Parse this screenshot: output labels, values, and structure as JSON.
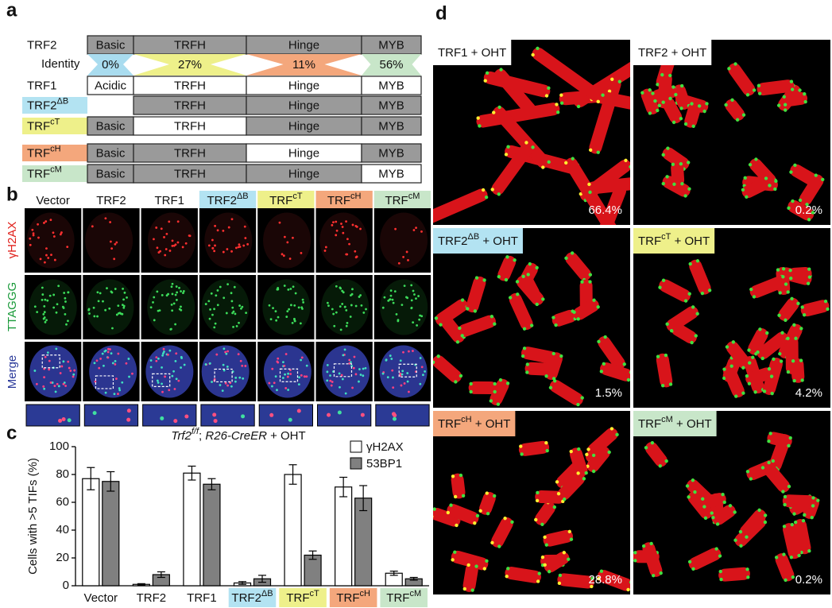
{
  "panel_a": {
    "letter": "a",
    "rows": [
      {
        "label": "TRF2",
        "label_color": null,
        "domains": [
          "Basic",
          "TRFH",
          "Hinge",
          "MYB"
        ],
        "shaded": [
          true,
          true,
          true,
          true
        ]
      },
      {
        "label": "TRF1",
        "label_color": null,
        "domains": [
          "Acidic",
          "TRFH",
          "Hinge",
          "MYB"
        ],
        "shaded": [
          false,
          false,
          false,
          false
        ]
      },
      {
        "label": {
          "base": "TRF2",
          "sup": "ΔB"
        },
        "label_color": "#b3e3f2",
        "domains": [
          null,
          "TRFH",
          "Hinge",
          "MYB"
        ],
        "shaded": [
          false,
          true,
          true,
          true
        ]
      },
      {
        "label": {
          "base": "TRF",
          "sup": "cT"
        },
        "label_color": "#eef08a",
        "domains": [
          "Basic",
          "TRFH",
          "Hinge",
          "MYB"
        ],
        "shaded": [
          true,
          false,
          true,
          true
        ]
      },
      {
        "label": {
          "base": "TRF",
          "sup": "cH"
        },
        "label_color": "#f4a77c",
        "domains": [
          "Basic",
          "TRFH",
          "Hinge",
          "MYB"
        ],
        "shaded": [
          true,
          true,
          false,
          true
        ]
      },
      {
        "label": {
          "base": "TRF",
          "sup": "cM"
        },
        "label_color": "#c8e6c9",
        "domains": [
          "Basic",
          "TRFH",
          "Hinge",
          "MYB"
        ],
        "shaded": [
          true,
          true,
          true,
          false
        ]
      }
    ],
    "identity": {
      "label": "Identity",
      "values": [
        "0%",
        "27%",
        "11%",
        "56%"
      ],
      "colors": [
        "#a9dcef",
        "#eef08a",
        "#f4a77c",
        "#c8e6c9"
      ]
    }
  },
  "panel_b": {
    "letter": "b",
    "columns": [
      "Vector",
      "TRF2",
      "TRF1",
      {
        "base": "TRF2",
        "sup": "ΔB"
      },
      {
        "base": "TRF",
        "sup": "cT"
      },
      {
        "base": "TRF",
        "sup": "cH"
      },
      {
        "base": "TRF",
        "sup": "cM"
      }
    ],
    "column_colors": [
      null,
      null,
      null,
      "#b3e3f2",
      "#eef08a",
      "#f4a77c",
      "#c8e6c9"
    ],
    "row_labels": [
      "γH2AX",
      "TTAGGG",
      "Merge"
    ],
    "row_colors": [
      "#e0201b",
      "#1a9a3a",
      "#2b3a9a"
    ]
  },
  "chart_data": {
    "type": "bar",
    "letter": "c",
    "title": {
      "gene": "Trf2",
      "sup": "f/f",
      "sep": "; ",
      "cre": "R26-CreER",
      "rest": " + OHT"
    },
    "y_label": "Cells with >5 TIFs (%)",
    "categories": [
      "Vector",
      "TRF2",
      "TRF1",
      {
        "base": "TRF2",
        "sup": "ΔB"
      },
      {
        "base": "TRF",
        "sup": "cT"
      },
      {
        "base": "TRF",
        "sup": "cH"
      },
      {
        "base": "TRF",
        "sup": "cM"
      }
    ],
    "category_colors": [
      null,
      null,
      null,
      "#b3e3f2",
      "#eef08a",
      "#f4a77c",
      "#c8e6c9"
    ],
    "series": [
      {
        "name": "γH2AX",
        "color": "#ffffff",
        "values": [
          77,
          1,
          81,
          2,
          80,
          71,
          9
        ],
        "errors": [
          8,
          0.5,
          5,
          1,
          7,
          7,
          1.5
        ]
      },
      {
        "name": "53BP1",
        "color": "#808080",
        "values": [
          75,
          8,
          73,
          5,
          22,
          63,
          5
        ],
        "errors": [
          7,
          2,
          4,
          2.5,
          3,
          9,
          1
        ]
      }
    ],
    "ylim": [
      0,
      100
    ],
    "yticks": [
      0,
      20,
      40,
      60,
      80,
      100
    ]
  },
  "panel_d": {
    "letter": "d",
    "panels": [
      {
        "label": {
          "base": "TRF1 + OHT"
        },
        "color": "#ffffff",
        "percent": "66.4%"
      },
      {
        "label": {
          "base": "TRF2 + OHT"
        },
        "color": "#ffffff",
        "percent": "0.2%"
      },
      {
        "label": {
          "base": "TRF2",
          "sup": "ΔB",
          "rest": " + OHT"
        },
        "color": "#b3e3f2",
        "percent": "1.5%"
      },
      {
        "label": {
          "base": "TRF",
          "sup": "cT",
          "rest": " + OHT"
        },
        "color": "#eef08a",
        "percent": "4.2%"
      },
      {
        "label": {
          "base": "TRF",
          "sup": "cH",
          "rest": " + OHT"
        },
        "color": "#f4a77c",
        "percent": "28.8%"
      },
      {
        "label": {
          "base": "TRF",
          "sup": "cM",
          "rest": " + OHT"
        },
        "color": "#c8e6c9",
        "percent": "0.2%"
      }
    ]
  }
}
